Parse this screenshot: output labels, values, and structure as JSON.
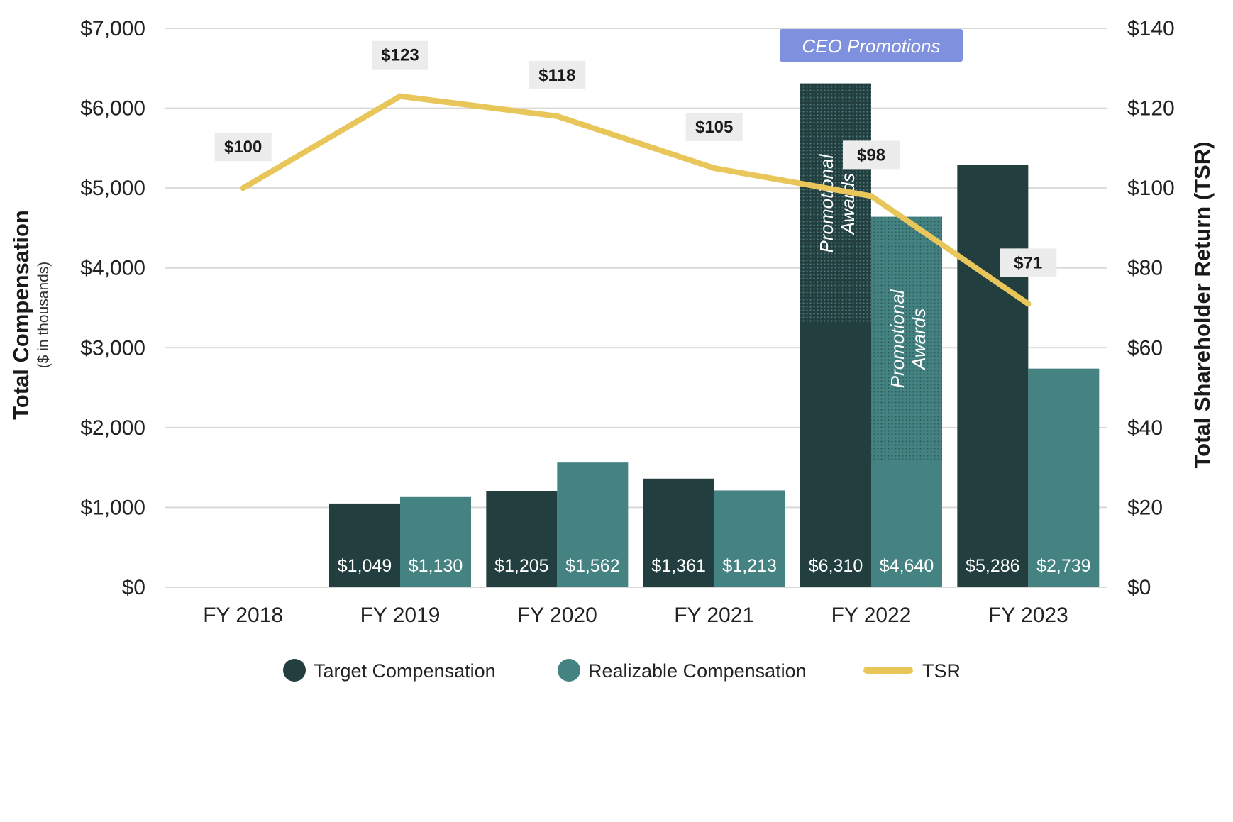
{
  "chart_data": {
    "type": "bar",
    "categories": [
      "FY 2018",
      "FY 2019",
      "FY 2020",
      "FY 2021",
      "FY 2022",
      "FY 2023"
    ],
    "series": [
      {
        "name": "Target Compensation",
        "color": "#223e3f",
        "values": [
          null,
          1049,
          1205,
          1361,
          6310,
          5286
        ],
        "labels": [
          "",
          "$1,049",
          "$1,205",
          "$1,361",
          "$6,310",
          "$5,286"
        ]
      },
      {
        "name": "Realizable Compensation",
        "color": "#458282",
        "values": [
          null,
          1130,
          1562,
          1213,
          4640,
          2739
        ],
        "labels": [
          "",
          "$1,130",
          "$1,562",
          "$1,213",
          "$4,640",
          "$2,739"
        ]
      }
    ],
    "promotional_awards": [
      {
        "category": "FY 2022",
        "series": "Target Compensation",
        "from": 3300,
        "to": 6310,
        "label_line1": "Promotional",
        "label_line2": "Awards"
      },
      {
        "category": "FY 2022",
        "series": "Realizable Compensation",
        "from": 1580,
        "to": 4640,
        "label_line1": "Promotional",
        "label_line2": "Awards"
      }
    ],
    "line_series": {
      "name": "TSR",
      "color": "#e9c65a",
      "values": [
        100,
        123,
        118,
        105,
        98,
        71
      ],
      "labels": [
        "$100",
        "$123",
        "$118",
        "$105",
        "$98",
        "$71"
      ]
    },
    "annotation": {
      "text": "CEO Promotions",
      "category": "FY 2022",
      "color": "#7f91de"
    },
    "ylabel": "Total Compensation",
    "ylabel_sub": "($ in thousands)",
    "y2label": "Total Shareholder Return  (TSR)",
    "ylim": [
      0,
      7000
    ],
    "y2lim": [
      0,
      140
    ],
    "yticks": [
      0,
      1000,
      2000,
      3000,
      4000,
      5000,
      6000,
      7000
    ],
    "ytick_labels": [
      "$0",
      "$1,000",
      "$2,000",
      "$3,000",
      "$4,000",
      "$5,000",
      "$6,000",
      "$7,000"
    ],
    "y2ticks": [
      0,
      20,
      40,
      60,
      80,
      100,
      120,
      140
    ],
    "y2tick_labels": [
      "$0",
      "$20",
      "$40",
      "$60",
      "$80",
      "$100",
      "$120",
      "$140"
    ],
    "grid": true,
    "legend": {
      "position": "bottom",
      "items": [
        {
          "label": "Target Compensation",
          "marker": "circle",
          "color": "#223e3f"
        },
        {
          "label": "Realizable Compensation",
          "marker": "circle",
          "color": "#458282"
        },
        {
          "label": "TSR",
          "marker": "line",
          "color": "#e9c65a"
        }
      ]
    }
  }
}
